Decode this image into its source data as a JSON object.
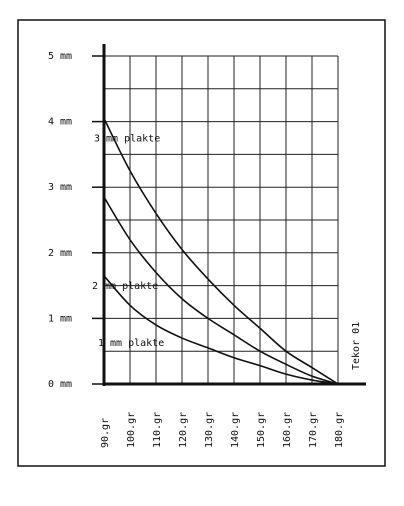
{
  "chart_data": {
    "type": "line",
    "title": "",
    "xlabel": "",
    "ylabel": "",
    "x": [
      90,
      100,
      110,
      120,
      130,
      140,
      150,
      160,
      170,
      180
    ],
    "x_tick_labels": [
      "90.gr",
      "100.gr",
      "110.gr",
      "120.gr",
      "130.gr",
      "140.gr",
      "150.gr",
      "160.gr",
      "170.gr",
      "180.gr"
    ],
    "y_tick_labels": [
      "0 mm",
      "1 mm",
      "2 mm",
      "3 mm",
      "4 mm",
      "5 mm"
    ],
    "y_ticks": [
      0,
      1,
      2,
      3,
      4,
      5
    ],
    "xlim": [
      90,
      180
    ],
    "ylim": [
      0,
      5
    ],
    "grid": true,
    "series": [
      {
        "name": "3 mm plakte",
        "x": [
          90,
          100,
          110,
          120,
          130,
          140,
          150,
          160,
          170,
          180
        ],
        "values": [
          4.05,
          3.25,
          2.6,
          2.05,
          1.6,
          1.2,
          0.85,
          0.5,
          0.25,
          0
        ]
      },
      {
        "name": "2 mm plakte",
        "x": [
          90,
          100,
          110,
          120,
          130,
          140,
          150,
          160,
          170,
          180
        ],
        "values": [
          2.85,
          2.2,
          1.7,
          1.3,
          1.0,
          0.75,
          0.5,
          0.3,
          0.12,
          0
        ]
      },
      {
        "name": "1 mm plakte",
        "x": [
          90,
          100,
          110,
          120,
          130,
          140,
          150,
          160,
          170,
          180
        ],
        "values": [
          1.65,
          1.2,
          0.9,
          0.7,
          0.55,
          0.4,
          0.28,
          0.15,
          0.06,
          0
        ]
      }
    ],
    "annotation": "Tekor 01",
    "colors": {
      "ink": "#111111",
      "background": "#ffffff"
    }
  }
}
